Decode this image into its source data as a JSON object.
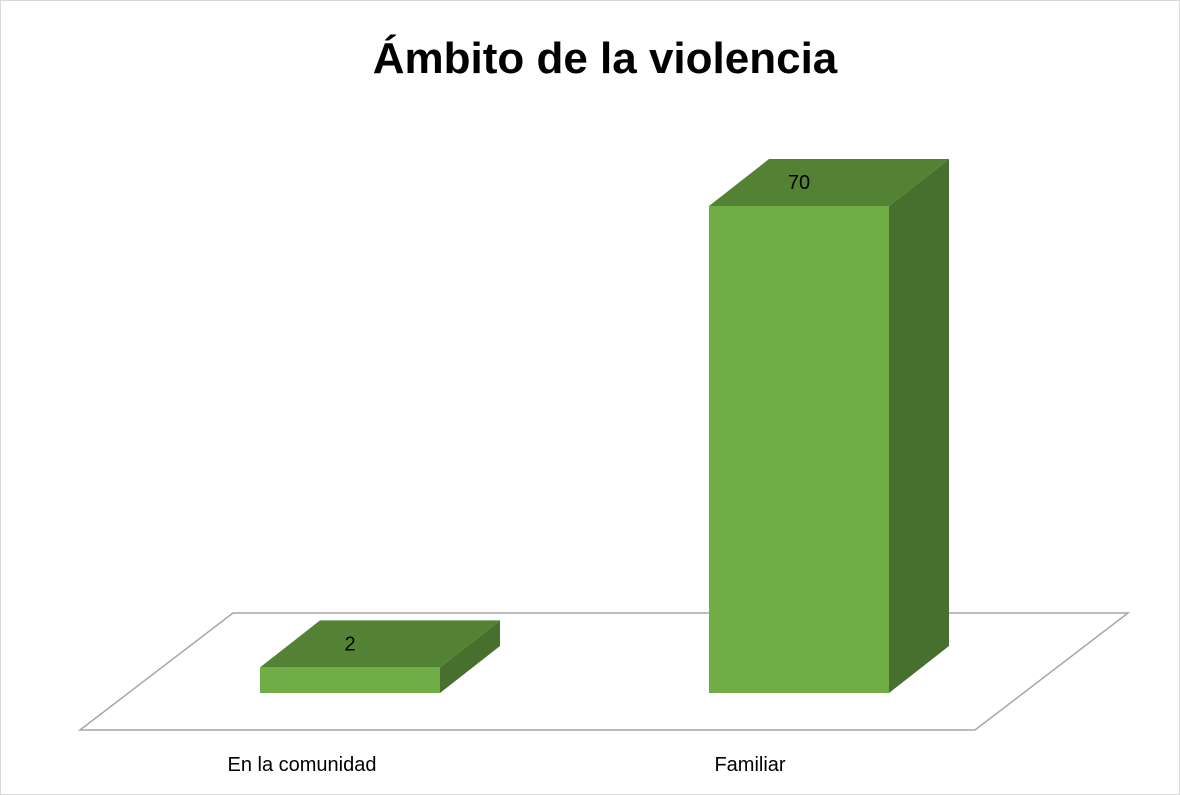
{
  "chart_data": {
    "type": "bar",
    "style": "3d-column",
    "title": "Ámbito de la violencia",
    "categories": [
      "En la comunidad",
      "Familiar"
    ],
    "values": [
      2,
      70
    ],
    "data_labels": [
      "2",
      "70"
    ],
    "ylim": [
      0,
      70
    ],
    "grid": false,
    "legend": "none",
    "colors": {
      "front": "#70ad47",
      "top": "#548235",
      "side": "#476f2d",
      "floor_line": "#a6a6a6",
      "border": "#d9d9d9"
    }
  }
}
